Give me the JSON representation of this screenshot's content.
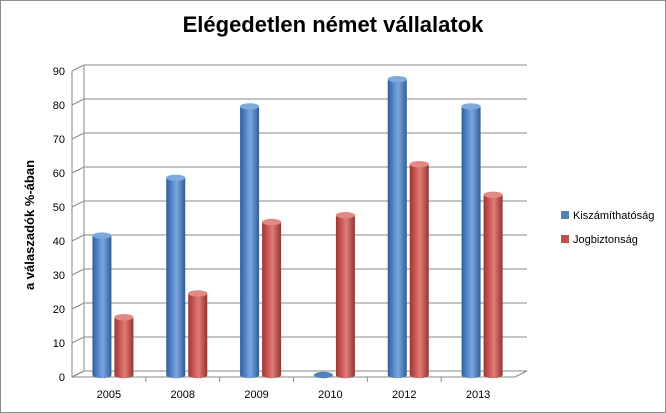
{
  "chart_data": {
    "type": "bar",
    "title": "Elégedetlen német vállalatok",
    "ylabel": "a válaszadók %-ában",
    "xlabel": "",
    "ylim": [
      0,
      90
    ],
    "yticks": [
      0,
      10,
      20,
      30,
      40,
      50,
      60,
      70,
      80,
      90
    ],
    "grid": true,
    "legend_position": "right",
    "categories": [
      "2005",
      "2008",
      "2009",
      "2010",
      "2012",
      "2013"
    ],
    "series": [
      {
        "name": "Kiszámíthatóság",
        "color": "#4f81bd",
        "values": [
          41,
          58,
          79,
          0,
          87,
          79
        ]
      },
      {
        "name": "Jogbiztonság",
        "color": "#c0504d",
        "values": [
          17,
          24,
          45,
          47,
          62,
          53
        ]
      }
    ]
  }
}
